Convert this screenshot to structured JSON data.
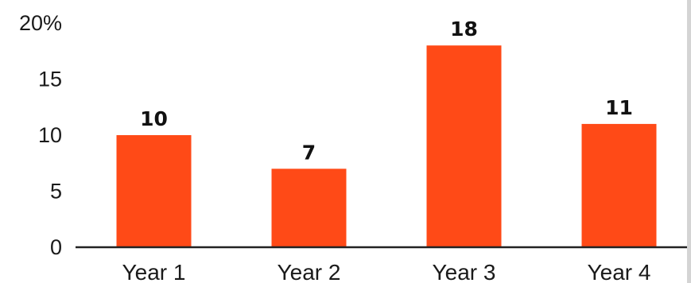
{
  "chart_data": {
    "type": "bar",
    "categories": [
      "Year 1",
      "Year 2",
      "Year 3",
      "Year 4"
    ],
    "values": [
      10,
      7,
      18,
      11
    ],
    "data_labels": [
      "10",
      "7",
      "18",
      "11"
    ],
    "title": "",
    "xlabel": "",
    "ylabel": "",
    "ylim": [
      0,
      20
    ],
    "y_ticks": [
      0,
      5,
      10,
      15,
      20
    ],
    "y_tick_labels": [
      "0",
      "5",
      "10",
      "15",
      "20%"
    ],
    "grid": false,
    "legend": "none",
    "bar_color": "#ff4a17",
    "axis_color": "#222222"
  }
}
